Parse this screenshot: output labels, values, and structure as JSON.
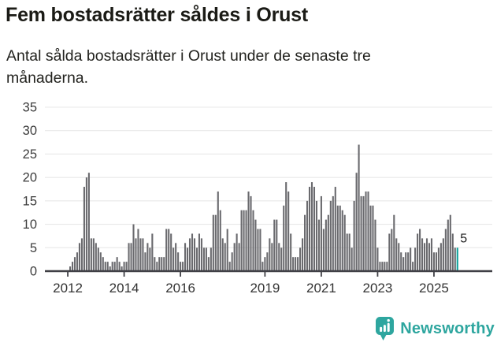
{
  "header": {
    "title": "Fem bostadsrätter såldes i Orust",
    "subtitle_line1": "Antal sålda bostadsrätter i Orust under de senaste tre",
    "subtitle_line2": "månaderna."
  },
  "chart_data": {
    "type": "bar",
    "title": "Fem bostadsrätter såldes i Orust",
    "subtitle": "Antal sålda bostadsrätter i Orust under de senaste tre månaderna.",
    "frequency": "monthly",
    "x_start": "2012-02",
    "x_end": "2025-11",
    "ylim": [
      0,
      35
    ],
    "y_ticks": [
      0,
      5,
      10,
      15,
      20,
      25,
      30,
      35
    ],
    "x_tick_years": [
      2012,
      2014,
      2016,
      2019,
      2021,
      2023,
      2025
    ],
    "x_tick_labels": [
      "2012",
      "2014",
      "2016",
      "2019",
      "2021",
      "2023",
      "2025"
    ],
    "grid": true,
    "legend": "none",
    "values": [
      1,
      2,
      3,
      4,
      6,
      7,
      18,
      20,
      21,
      7,
      7,
      6,
      5,
      4,
      3,
      2,
      2,
      1,
      2,
      2,
      3,
      2,
      1,
      2,
      2,
      6,
      6,
      10,
      7,
      9,
      7,
      7,
      4,
      6,
      5,
      8,
      3,
      2,
      3,
      3,
      3,
      9,
      9,
      8,
      5,
      6,
      4,
      2,
      2,
      6,
      5,
      7,
      8,
      7,
      5,
      8,
      7,
      5,
      5,
      3,
      5,
      12,
      12,
      17,
      13,
      7,
      6,
      9,
      2,
      4,
      6,
      8,
      6,
      13,
      13,
      13,
      17,
      16,
      13,
      11,
      9,
      9,
      2,
      3,
      4,
      7,
      6,
      11,
      11,
      6,
      5,
      14,
      19,
      17,
      8,
      3,
      3,
      3,
      5,
      7,
      12,
      15,
      18,
      19,
      18,
      15,
      11,
      16,
      9,
      11,
      12,
      15,
      16,
      18,
      14,
      14,
      13,
      12,
      8,
      8,
      5,
      15,
      21,
      27,
      16,
      16,
      17,
      17,
      14,
      14,
      11,
      5,
      2,
      2,
      2,
      2,
      8,
      9,
      12,
      7,
      6,
      4,
      3,
      4,
      4,
      5,
      2,
      5,
      8,
      9,
      7,
      6,
      7,
      6,
      7,
      4,
      4,
      5,
      6,
      7,
      9,
      11,
      12,
      8,
      5,
      5
    ],
    "highlight": {
      "index": 165,
      "value_label": "5"
    }
  },
  "colors": {
    "bar": "#6a6a6e",
    "highlight_bar": "#0ca29b",
    "grid": "#e8e8e8",
    "axis": "#404046",
    "tick_label": "#3d3d3d",
    "value_label": "#1f1f1f",
    "brand_teal": "#2ea69f"
  },
  "footer": {
    "brand": "Newsworthy"
  }
}
